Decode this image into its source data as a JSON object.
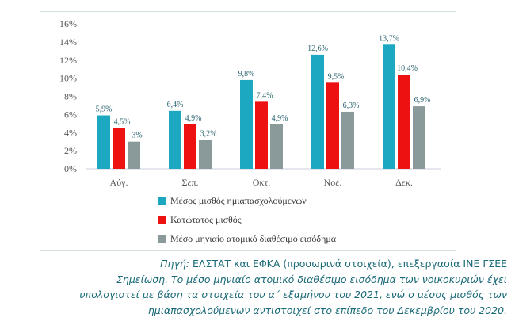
{
  "chart_data": {
    "type": "bar",
    "categories": [
      "Αύγ.",
      "Σεπ.",
      "Οκτ.",
      "Νοέ.",
      "Δεκ."
    ],
    "series": [
      {
        "name": "Μέσος μισθός ημιαπασχολούμενων",
        "color": "#1ba8c0",
        "values": [
          5.9,
          6.4,
          9.8,
          12.6,
          13.7
        ],
        "labels": [
          "5,9%",
          "6,4%",
          "9,8%",
          "12,6%",
          "13,7%"
        ]
      },
      {
        "name": "Κατώτατος μισθός",
        "color": "#ee1111",
        "values": [
          4.5,
          4.9,
          7.4,
          9.5,
          10.4
        ],
        "labels": [
          "4,5%",
          "4,9%",
          "7,4%",
          "9,5%",
          "10,4%"
        ]
      },
      {
        "name": "Μέσο μηνιαίο ατομικό διαθέσιμο εισόδημα",
        "color": "#8a9a9a",
        "values": [
          3,
          3.2,
          4.9,
          6.3,
          6.9
        ],
        "labels": [
          "3%",
          "3,2%",
          "4,9%",
          "6,3%",
          "6,9%"
        ]
      }
    ],
    "ylim": [
      0,
      16
    ],
    "yticks": [
      "0%",
      "2%",
      "4%",
      "6%",
      "8%",
      "10%",
      "12%",
      "14%",
      "16%"
    ],
    "grid": false,
    "legend_placement": "bottom"
  },
  "notes": {
    "source_label": "Πηγή:",
    "source_text": " ΕΛΣΤΑΤ και ΕΦΚΑ (προσωρινά στοιχεία), επεξεργασία ΙΝΕ ΓΣΕΕ",
    "line2": "Σημείωση. Το μέσο μηνιαίο ατομικό διαθέσιμο εισόδημα των νοικοκυριών έχει",
    "line3": "υπολογιστεί με βάση τα στοιχεία του α΄ εξαμήνου του 2021, ενώ ο μέσος μισθός των",
    "line4": "ημιαπασχολούμενων αντιστοιχεί στο επίπεδο του Δεκεμβρίου του 2020."
  }
}
